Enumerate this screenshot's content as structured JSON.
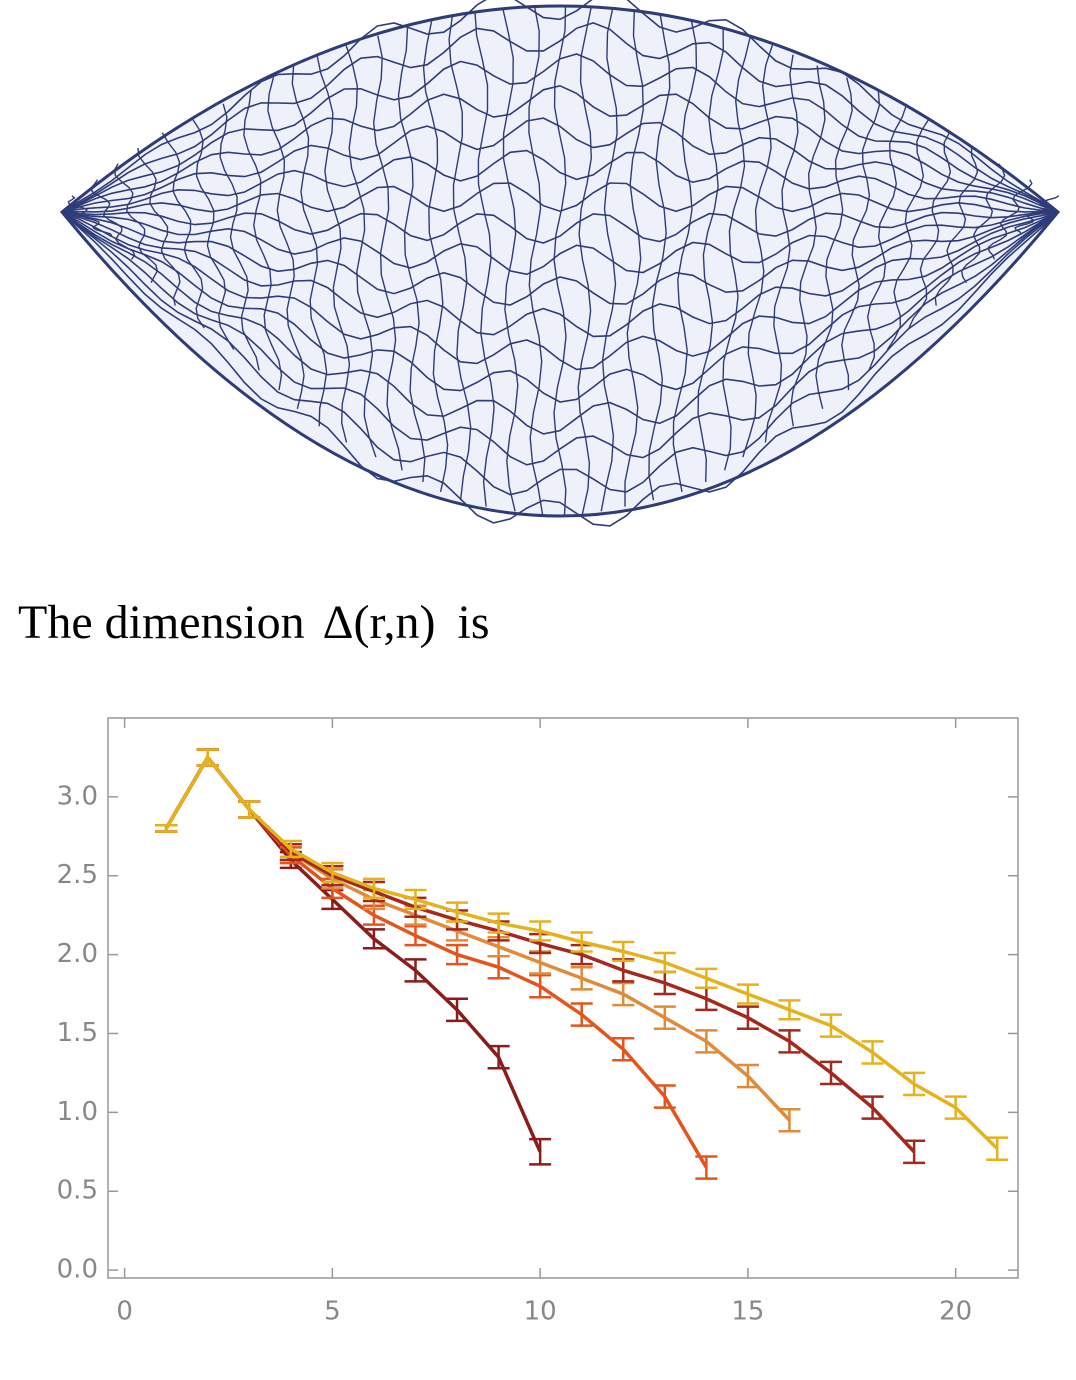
{
  "caption": {
    "text": "The dimension",
    "math": "Δ(r,n)",
    "after": "is"
  },
  "chart_data": {
    "type": "errorbar-line",
    "xlim": [
      -0.4,
      21.5
    ],
    "ylim": [
      -0.05,
      3.5
    ],
    "xticks": [
      0,
      5,
      10,
      15,
      20
    ],
    "yticks": [
      {
        "value": 0,
        "label": "0.0"
      },
      0.5,
      {
        "value": 1,
        "label": "1.0"
      },
      1.5,
      {
        "value": 2,
        "label": "2.0"
      },
      2.5,
      {
        "value": 3,
        "label": "3.0"
      }
    ],
    "grid": false,
    "series": [
      {
        "color": "#8b1c1c",
        "x": [
          1,
          2,
          3,
          4,
          5,
          6,
          7,
          8,
          9,
          10
        ],
        "values": [
          2.8,
          3.25,
          2.92,
          2.6,
          2.35,
          2.1,
          1.9,
          1.65,
          1.35,
          0.75
        ],
        "errors": [
          0.02,
          0.05,
          0.05,
          0.05,
          0.06,
          0.06,
          0.07,
          0.07,
          0.07,
          0.08
        ]
      },
      {
        "color": "#e4541c",
        "x": [
          1,
          2,
          3,
          4,
          5,
          6,
          7,
          8,
          9,
          10,
          11,
          12,
          13,
          14
        ],
        "values": [
          2.8,
          3.25,
          2.92,
          2.63,
          2.42,
          2.25,
          2.12,
          2.0,
          1.92,
          1.8,
          1.62,
          1.4,
          1.1,
          0.65
        ],
        "errors": [
          0.02,
          0.05,
          0.05,
          0.05,
          0.06,
          0.06,
          0.06,
          0.06,
          0.07,
          0.07,
          0.07,
          0.07,
          0.07,
          0.07
        ]
      },
      {
        "color": "#e08a3a",
        "x": [
          1,
          2,
          3,
          4,
          5,
          6,
          7,
          8,
          9,
          10,
          11,
          12,
          13,
          14,
          15,
          16
        ],
        "values": [
          2.8,
          3.25,
          2.92,
          2.65,
          2.48,
          2.35,
          2.25,
          2.15,
          2.05,
          1.95,
          1.85,
          1.75,
          1.6,
          1.45,
          1.23,
          0.95
        ],
        "errors": [
          0.02,
          0.05,
          0.05,
          0.05,
          0.06,
          0.06,
          0.06,
          0.06,
          0.06,
          0.07,
          0.07,
          0.07,
          0.07,
          0.07,
          0.07,
          0.07
        ]
      },
      {
        "color": "#a4281e",
        "x": [
          1,
          2,
          3,
          4,
          5,
          6,
          7,
          8,
          9,
          10,
          11,
          12,
          13,
          14,
          15,
          16,
          17,
          18,
          19
        ],
        "values": [
          2.8,
          3.25,
          2.92,
          2.65,
          2.5,
          2.4,
          2.3,
          2.22,
          2.15,
          2.07,
          2.0,
          1.9,
          1.82,
          1.72,
          1.6,
          1.45,
          1.25,
          1.03,
          0.75
        ],
        "errors": [
          0.02,
          0.05,
          0.05,
          0.05,
          0.06,
          0.06,
          0.06,
          0.06,
          0.06,
          0.06,
          0.06,
          0.07,
          0.07,
          0.07,
          0.07,
          0.07,
          0.07,
          0.07,
          0.07
        ]
      },
      {
        "color": "#e5b21e",
        "x": [
          1,
          2,
          3,
          4,
          5,
          6,
          7,
          8,
          9,
          10,
          11,
          12,
          13,
          14,
          15,
          16,
          17,
          18,
          19,
          20,
          21
        ],
        "values": [
          2.8,
          3.25,
          2.92,
          2.67,
          2.52,
          2.42,
          2.35,
          2.27,
          2.2,
          2.15,
          2.08,
          2.02,
          1.95,
          1.85,
          1.75,
          1.65,
          1.55,
          1.38,
          1.18,
          1.03,
          0.77
        ],
        "errors": [
          0.02,
          0.05,
          0.05,
          0.05,
          0.06,
          0.06,
          0.06,
          0.06,
          0.06,
          0.06,
          0.06,
          0.06,
          0.06,
          0.06,
          0.06,
          0.06,
          0.07,
          0.07,
          0.07,
          0.07,
          0.07
        ]
      }
    ]
  }
}
